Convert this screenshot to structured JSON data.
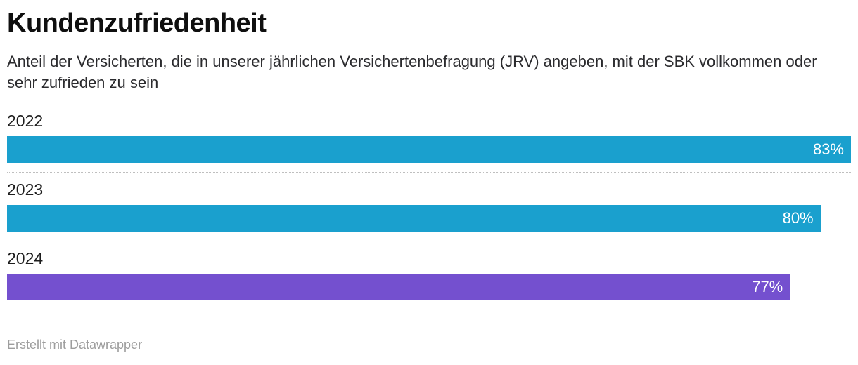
{
  "header": {
    "title": "Kundenzufriedenheit",
    "subtitle": "Anteil der Versicherten, die in unserer jährlichen Versichertenbefragung (JRV) angeben, mit der SBK vollkommen oder sehr zufrieden zu sein"
  },
  "footer": {
    "attribution": "Erstellt mit Datawrapper"
  },
  "colors": {
    "bar_blue": "#1aa0ce",
    "bar_purple": "#7450cf",
    "value_text": "#ffffff",
    "divider": "#bfbfbf"
  },
  "chart_data": {
    "type": "bar",
    "orientation": "horizontal",
    "title": "Kundenzufriedenheit",
    "subtitle": "Anteil der Versicherten, die in unserer jährlichen Versichertenbefragung (JRV) angeben, mit der SBK vollkommen oder sehr zufrieden zu sein",
    "categories": [
      "2022",
      "2023",
      "2024"
    ],
    "values": [
      83,
      80,
      77
    ],
    "value_labels": [
      "83%",
      "80%",
      "77%"
    ],
    "unit": "%",
    "series_colors": [
      "#1aa0ce",
      "#1aa0ce",
      "#7450cf"
    ],
    "scale_max": 83,
    "grid": "dotted-row-dividers",
    "legend": "none",
    "value_label_position": "inside-end",
    "footer": "Erstellt mit Datawrapper"
  }
}
